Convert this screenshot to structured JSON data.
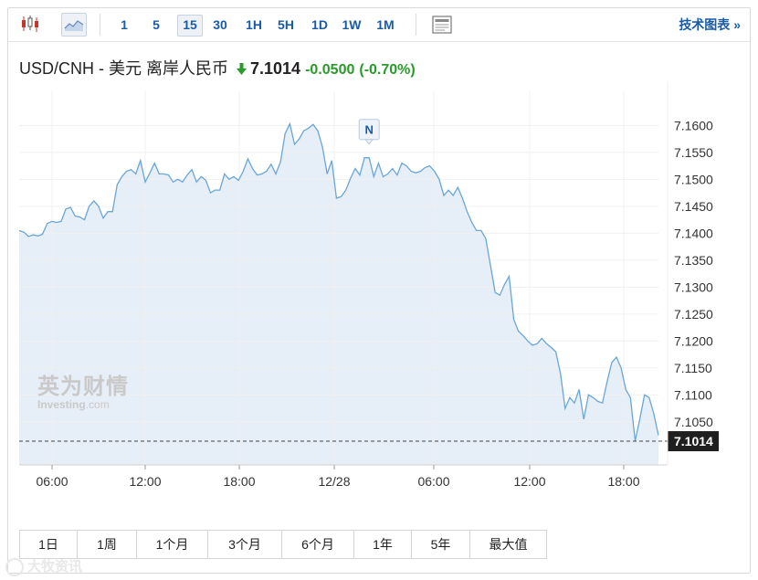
{
  "toolbar": {
    "intervals": [
      "1",
      "5",
      "15",
      "30",
      "1H",
      "5H",
      "1D",
      "1W",
      "1M"
    ],
    "active_interval": "15",
    "tech_chart": "技术图表 »",
    "icons": [
      "candlestick-icon",
      "area-chart-icon",
      "news-icon"
    ]
  },
  "quote": {
    "name": "USD/CNH - 美元 离岸人民币",
    "price": "7.1014",
    "change": "-0.0500",
    "change_pct": "(-0.70%)",
    "direction": "down",
    "change_color": "#2a9a2a"
  },
  "watermark": {
    "cn": "英为财情",
    "en_main": "Investing",
    "en_suffix": ".com"
  },
  "periods": [
    "1日",
    "1周",
    "1个月",
    "3个月",
    "6个月",
    "1年",
    "5年",
    "最大值"
  ],
  "corner_brand": "大牧资讯",
  "chart_data": {
    "type": "area",
    "x_ticks": [
      "06:00",
      "12:00",
      "18:00",
      "12/28",
      "06:00",
      "12:00",
      "18:00"
    ],
    "y_ticks": [
      "7.1600",
      "7.1550",
      "7.1500",
      "7.1450",
      "7.1400",
      "7.1350",
      "7.1300",
      "7.1250",
      "7.1200",
      "7.1150",
      "7.1100",
      "7.1050"
    ],
    "ylim": [
      7.097,
      7.1665
    ],
    "last_price_label": "7.1014",
    "last_price": 7.1014,
    "event_marker": {
      "label": "N",
      "at_index": 75
    },
    "line_color": "#6aa6d6",
    "fill_color": "#e6eef7",
    "values": [
      7.1405,
      7.1402,
      7.1394,
      7.1397,
      7.1395,
      7.1398,
      7.1418,
      7.1422,
      7.142,
      7.1422,
      7.1445,
      7.1448,
      7.1432,
      7.143,
      7.1425,
      7.145,
      7.146,
      7.145,
      7.1428,
      7.144,
      7.144,
      7.149,
      7.1505,
      7.1515,
      7.1518,
      7.151,
      7.1535,
      7.1495,
      7.1512,
      7.153,
      7.151,
      7.151,
      7.1508,
      7.1495,
      7.15,
      7.1495,
      7.1508,
      7.1518,
      7.1495,
      7.1505,
      7.1498,
      7.1475,
      7.148,
      7.148,
      7.151,
      7.15,
      7.1505,
      7.1498,
      7.1515,
      7.1538,
      7.152,
      7.1508,
      7.151,
      7.1515,
      7.1528,
      7.151,
      7.1532,
      7.1585,
      7.1603,
      7.1565,
      7.1575,
      7.159,
      7.1595,
      7.1602,
      7.159,
      7.156,
      7.151,
      7.1535,
      7.1465,
      7.1468,
      7.148,
      7.1502,
      7.152,
      7.1508,
      7.154,
      7.154,
      7.1505,
      7.153,
      7.1505,
      7.151,
      7.152,
      7.1508,
      7.153,
      7.1525,
      7.1515,
      7.1512,
      7.1515,
      7.1522,
      7.1525,
      7.1515,
      7.15,
      7.147,
      7.148,
      7.147,
      7.1485,
      7.1465,
      7.144,
      7.142,
      7.1405,
      7.1405,
      7.139,
      7.134,
      7.129,
      7.1285,
      7.1305,
      7.132,
      7.124,
      7.1218,
      7.121,
      7.12,
      7.1192,
      7.1195,
      7.1205,
      7.1195,
      7.1188,
      7.118,
      7.114,
      7.1075,
      7.1095,
      7.1085,
      7.111,
      7.1055,
      7.11,
      7.1095,
      7.1088,
      7.1085,
      7.1125,
      7.116,
      7.117,
      7.115,
      7.111,
      7.1095,
      7.1015,
      7.1055,
      7.11,
      7.1095,
      7.1065,
      7.1025
    ]
  }
}
